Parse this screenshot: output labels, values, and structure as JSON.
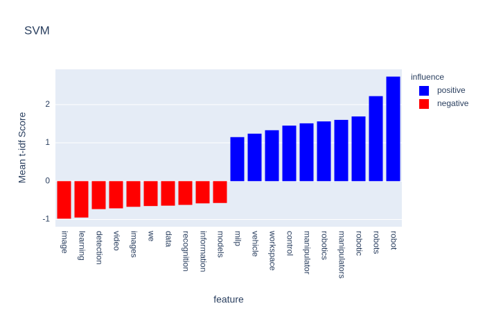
{
  "chart_data": {
    "type": "bar",
    "title": "SVM",
    "x_label": "feature",
    "y_label": "Mean t-idf Score",
    "legend_title": "influence",
    "legend": "right",
    "categories": [
      "image",
      "learning",
      "detection",
      "video",
      "images",
      "we",
      "data",
      "recognition",
      "information",
      "models",
      "milp",
      "vehicle",
      "workspace",
      "control",
      "manipulator",
      "robotics",
      "manipulators",
      "robotic",
      "robots",
      "robot"
    ],
    "series": [
      {
        "name": "positive",
        "color": "#0000ff",
        "values": [
          null,
          null,
          null,
          null,
          null,
          null,
          null,
          null,
          null,
          null,
          1.15,
          1.24,
          1.33,
          1.45,
          1.51,
          1.56,
          1.6,
          1.69,
          2.22,
          2.73
        ]
      },
      {
        "name": "negative",
        "color": "#ff0000",
        "values": [
          -0.98,
          -0.95,
          -0.73,
          -0.71,
          -0.67,
          -0.65,
          -0.64,
          -0.62,
          -0.58,
          -0.57,
          null,
          null,
          null,
          null,
          null,
          null,
          null,
          null,
          null,
          null
        ]
      }
    ],
    "ylim": [
      -1.19,
      2.92
    ],
    "yticks": [
      -1,
      0,
      1,
      2
    ],
    "grid": true
  }
}
